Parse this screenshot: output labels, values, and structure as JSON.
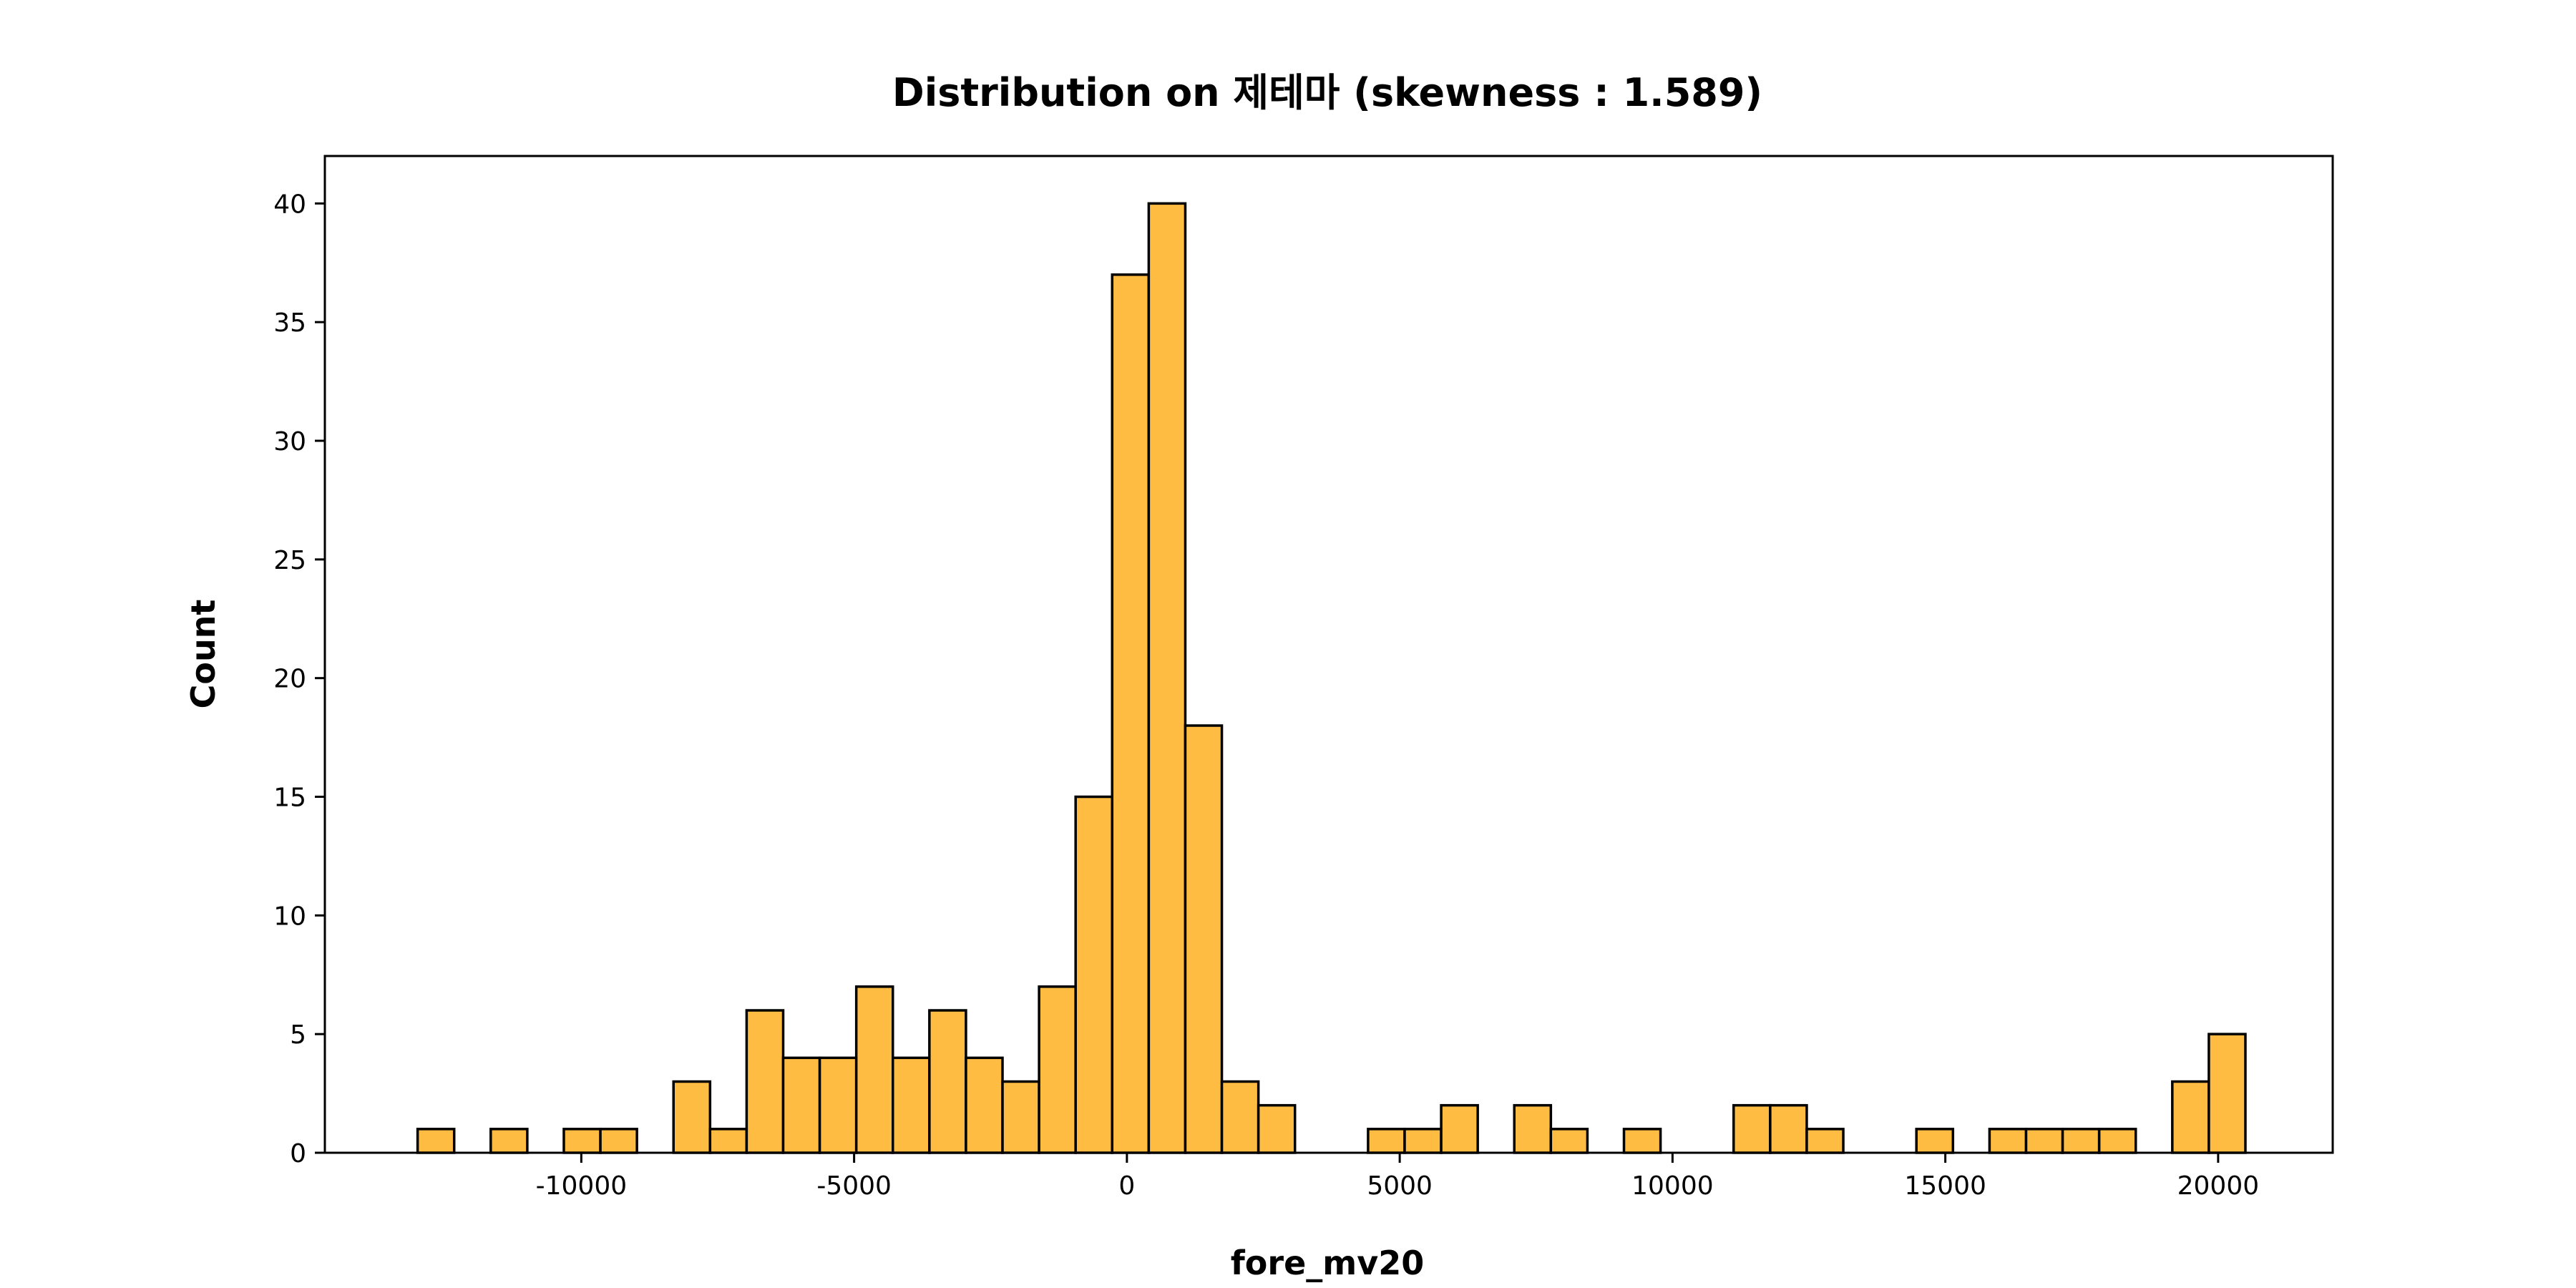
{
  "chart_data": {
    "type": "bar",
    "title": "Distribution on 제테마 (skewness : 1.589)",
    "xlabel": "fore_mv20",
    "ylabel": "Count",
    "xlim": [
      -14700,
      22100
    ],
    "ylim": [
      0,
      42
    ],
    "grid": false,
    "bar_color": "#FFBC42",
    "edge_color": "#000000",
    "x_ticks": [
      {
        "value": -10000,
        "label": "-10000"
      },
      {
        "value": -5000,
        "label": "-5000"
      },
      {
        "value": 0,
        "label": "0"
      },
      {
        "value": 5000,
        "label": "5000"
      },
      {
        "value": 10000,
        "label": "10000"
      },
      {
        "value": 15000,
        "label": "15000"
      },
      {
        "value": 20000,
        "label": "20000"
      }
    ],
    "y_ticks": [
      {
        "value": 0,
        "label": "0"
      },
      {
        "value": 5,
        "label": "5"
      },
      {
        "value": 10,
        "label": "10"
      },
      {
        "value": 15,
        "label": "15"
      },
      {
        "value": 20,
        "label": "20"
      },
      {
        "value": 25,
        "label": "25"
      },
      {
        "value": 30,
        "label": "30"
      },
      {
        "value": 35,
        "label": "35"
      },
      {
        "value": 40,
        "label": "40"
      }
    ],
    "bin_edges": [
      -13000,
      -12330,
      -11660,
      -10990,
      -10320,
      -9650,
      -8980,
      -8310,
      -7640,
      -6970,
      -6300,
      -5630,
      -4960,
      -4290,
      -3620,
      -2950,
      -2280,
      -1610,
      -940,
      -270,
      400,
      1070,
      1740,
      2410,
      3080,
      3750,
      4420,
      5090,
      5760,
      6430,
      7100,
      7770,
      8440,
      9110,
      9780,
      10450,
      11120,
      11790,
      12460,
      13130,
      13800,
      14470,
      15140,
      15810,
      16480,
      17150,
      17820,
      18490,
      19160,
      19830,
      20500
    ],
    "counts": [
      1,
      0,
      1,
      0,
      1,
      1,
      0,
      3,
      1,
      6,
      4,
      4,
      7,
      4,
      6,
      4,
      3,
      7,
      15,
      37,
      40,
      18,
      3,
      2,
      0,
      0,
      1,
      1,
      2,
      0,
      2,
      1,
      0,
      1,
      0,
      0,
      2,
      2,
      1,
      0,
      0,
      1,
      0,
      1,
      1,
      1,
      1,
      0,
      3,
      5
    ]
  }
}
